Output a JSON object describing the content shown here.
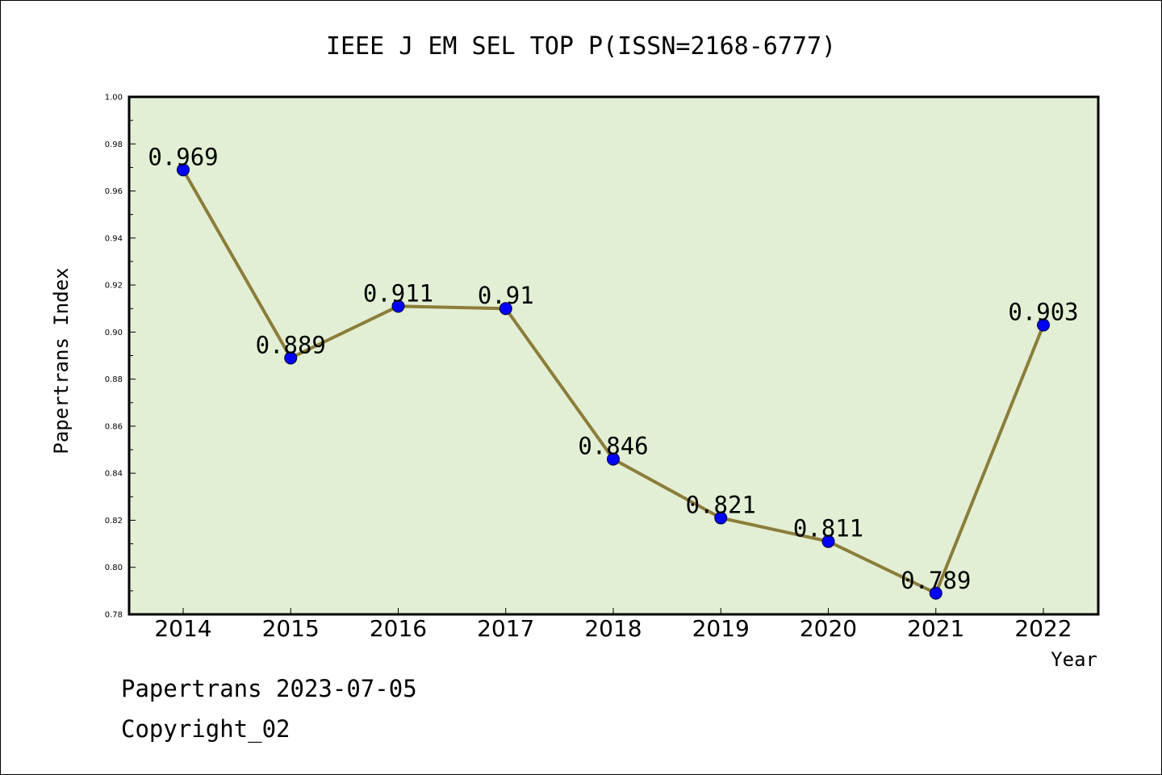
{
  "chart_data": {
    "type": "line",
    "title": "IEEE J EM SEL TOP P(ISSN=2168-6777)",
    "xlabel": "Year",
    "ylabel": "Papertrans Index",
    "categories": [
      "2014",
      "2015",
      "2016",
      "2017",
      "2018",
      "2019",
      "2020",
      "2021",
      "2022"
    ],
    "values": [
      0.969,
      0.889,
      0.911,
      0.91,
      0.846,
      0.821,
      0.811,
      0.789,
      0.903
    ],
    "data_labels": [
      "0.969",
      "0.889",
      "0.911",
      "0.91",
      "0.846",
      "0.821",
      "0.811",
      "0.789",
      "0.903"
    ],
    "ylim": [
      0.78,
      1.0
    ],
    "yticks": [
      "0.78",
      "0.80",
      "0.82",
      "0.84",
      "0.86",
      "0.88",
      "0.90",
      "0.92",
      "0.94",
      "0.96",
      "0.98",
      "1.00"
    ],
    "grid": false,
    "legend": "none",
    "colors": {
      "plot_background": "#e2efd4",
      "line": "#8b7d3a",
      "marker": "#0000ff",
      "axes": "#000000"
    }
  },
  "footer": {
    "date_line": "Papertrans 2023-07-05",
    "copyright": "Copyright_02"
  }
}
